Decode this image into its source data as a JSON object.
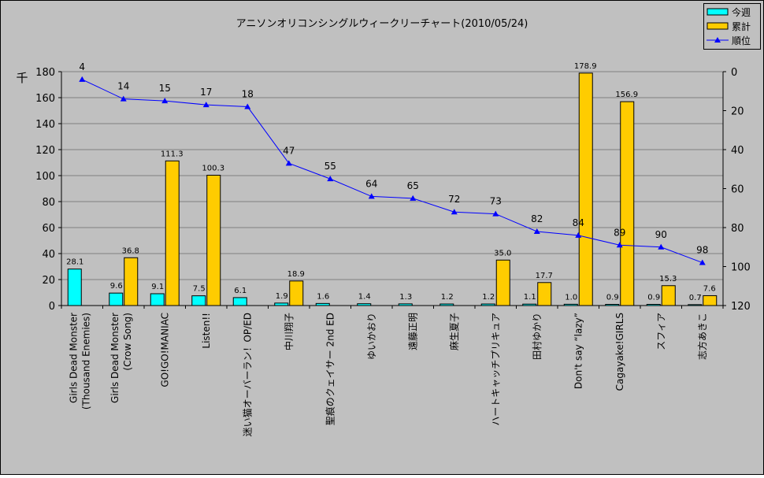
{
  "chart_data": {
    "type": "bar+line",
    "title": "アニソンオリコンシングルウィークリーチャート(2010/05/24)",
    "ylabel": "千",
    "ylim": [
      0,
      180
    ],
    "yticks": [
      0,
      20,
      40,
      60,
      80,
      100,
      120,
      140,
      160,
      180
    ],
    "y2lim": [
      0,
      120
    ],
    "y2_reversed": true,
    "y2ticks": [
      0,
      20,
      40,
      60,
      80,
      100,
      120
    ],
    "grid": true,
    "legend_position": "top-right",
    "categories": [
      [
        "Girls Dead Monster",
        "(Thousand Enemies)"
      ],
      [
        "Girls Dead Monster",
        "(Crow Song)"
      ],
      [
        "GO!GO!MANIAC"
      ],
      [
        "Listen!!"
      ],
      [
        "迷い猫オーバーラン！OP/ED"
      ],
      [
        "中川翔子"
      ],
      [
        "聖痕のクェイサー 2nd ED"
      ],
      [
        "ゆいかおり"
      ],
      [
        "遠藤正明"
      ],
      [
        "麻生夏子"
      ],
      [
        "ハートキャッチプリキュア"
      ],
      [
        "田村ゆかり"
      ],
      [
        "Don't say “lazy”"
      ],
      [
        "Cagayake!GIRLS"
      ],
      [
        "スフィア"
      ],
      [
        "志方あきこ"
      ]
    ],
    "series": [
      {
        "name": "今週",
        "type": "bar",
        "color": "#00ffff",
        "values": [
          28.1,
          9.6,
          9.1,
          7.5,
          6.1,
          1.9,
          1.6,
          1.4,
          1.3,
          1.2,
          1.2,
          1.1,
          1.0,
          0.9,
          0.9,
          0.7
        ],
        "labels": [
          "28.1",
          "9.6",
          "9.1",
          "7.5",
          "6.1",
          "1.9",
          "1.6",
          "1.4",
          "1.3",
          "1.2",
          "1.2",
          "1.1",
          "1.0",
          "0.9",
          "0.9",
          "0.7"
        ]
      },
      {
        "name": "累計",
        "type": "bar",
        "color": "#ffcc00",
        "values": [
          null,
          36.8,
          111.3,
          100.3,
          null,
          18.9,
          null,
          null,
          null,
          null,
          35.0,
          17.7,
          178.9,
          156.9,
          15.3,
          7.6
        ],
        "labels": [
          null,
          "36.8",
          "111.3",
          "100.3",
          null,
          "18.9",
          null,
          null,
          null,
          null,
          "35.0",
          "17.7",
          "178.9",
          "156.9",
          "15.3",
          "7.6"
        ]
      },
      {
        "name": "順位",
        "type": "line",
        "axis": "right",
        "color": "#0000ff",
        "values": [
          4,
          14,
          15,
          17,
          18,
          47,
          55,
          64,
          65,
          72,
          73,
          82,
          84,
          89,
          90,
          98
        ]
      }
    ]
  }
}
